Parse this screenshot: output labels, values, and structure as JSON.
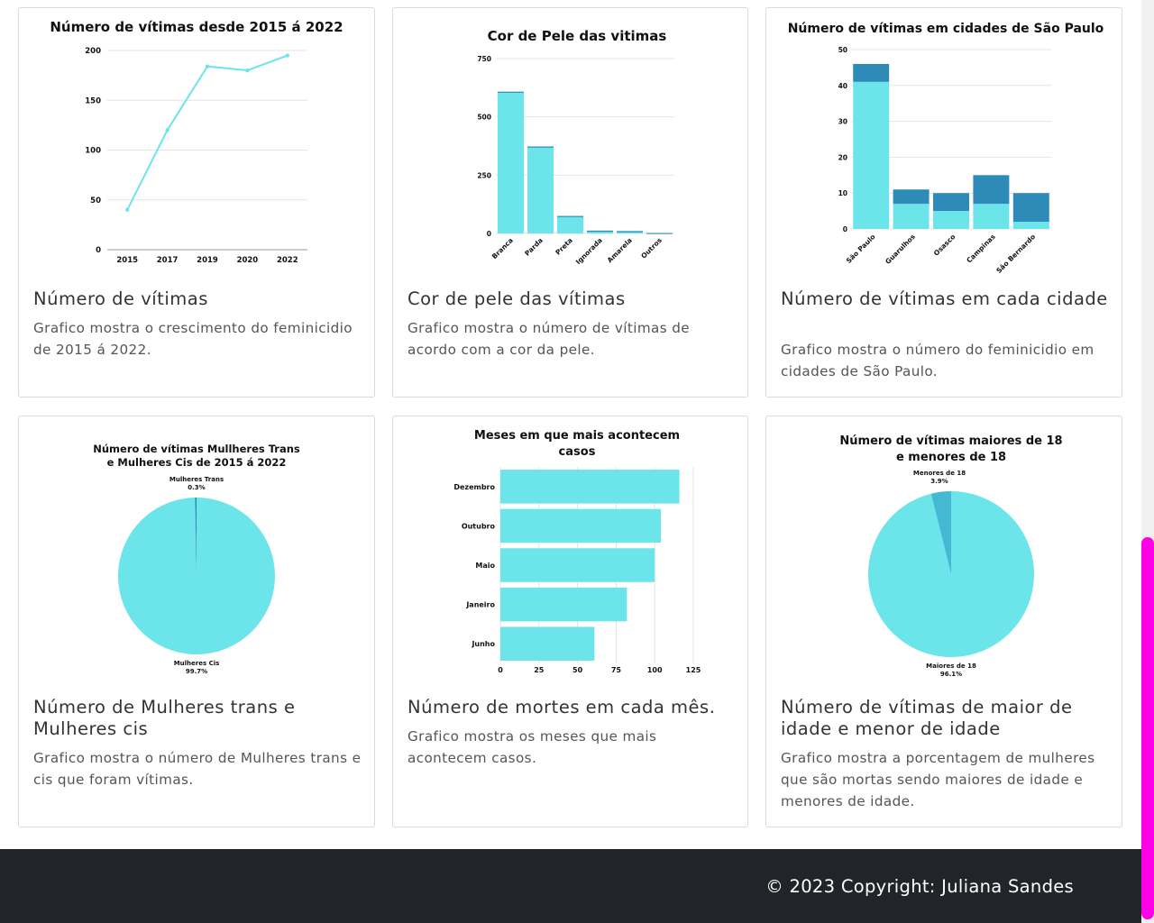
{
  "cards": [
    {
      "title": "Número de vítimas",
      "text": "Grafico mostra o crescimento do feminicidio de 2015 á 2022."
    },
    {
      "title": "Cor de pele das vítimas",
      "text": "Grafico mostra o número de vítimas de acordo com a cor da pele."
    },
    {
      "title": "Número de vítimas em cada cidade",
      "text": "Grafico mostra o número do feminicidio em cidades de São Paulo."
    },
    {
      "title": "Número de Mulheres trans e Mulheres cis",
      "text": "Grafico mostra o número de Mulheres trans e cis que foram vítimas."
    },
    {
      "title": "Número de mortes em cada mês.",
      "text": "Grafico mostra os meses que mais acontecem casos."
    },
    {
      "title": "Número de vítimas de maior de idade e menor de idade",
      "text": "Grafico mostra a porcentagem de mulheres que são mortas sendo maiores de idade e menores de idade."
    }
  ],
  "footer": {
    "copyright": "© 2023 Copyright: Juliana Sandes"
  },
  "colors": {
    "primary": "#6ce5ea",
    "dark": "#2e8bb8",
    "slice": "#45b8d4",
    "footer": "#212529",
    "scrollbar": "#ff00e6"
  },
  "chart_data": [
    {
      "type": "line",
      "title": "Número de vítimas desde 2015 á 2022",
      "categories": [
        "2015",
        "2017",
        "2019",
        "2020",
        "2022"
      ],
      "values": [
        40,
        120,
        184,
        180,
        195
      ],
      "yticks": [
        "0",
        "50",
        "100",
        "150",
        "200"
      ],
      "ylim": [
        0,
        200
      ],
      "grid": true,
      "color": "#6ce5ea"
    },
    {
      "type": "bar",
      "title": "Cor de Pele das vitimas",
      "categories": [
        "Branca",
        "Parda",
        "Preta",
        "Ignorada",
        "Amarela",
        "Outros"
      ],
      "values": [
        608,
        373,
        75,
        12,
        10,
        2
      ],
      "yticks": [
        "0",
        "250",
        "500",
        "750"
      ],
      "ylim": [
        0,
        750
      ],
      "grid": true,
      "color": "#6ce5ea"
    },
    {
      "type": "bar",
      "title": "Número de vítimas em cidades de São Paulo",
      "categories": [
        "São Paulo",
        "Guarulhos",
        "Osasco",
        "Campinas",
        "São Bernardo"
      ],
      "series": [
        {
          "values": [
            41,
            7,
            5,
            7,
            2
          ],
          "color": "#6ce5ea"
        },
        {
          "values": [
            5,
            4,
            5,
            8,
            8
          ],
          "color": "#2e8bb8"
        }
      ],
      "stacked": true,
      "yticks": [
        "0",
        "10",
        "20",
        "30",
        "40",
        "50"
      ],
      "ylim": [
        0,
        50
      ],
      "grid": true
    },
    {
      "type": "pie",
      "title": "Número de vítimas Mullheres Trans e Mulheres Cis de 2015 á 2022",
      "slices": [
        {
          "label": "Mulheres Trans",
          "pct": "0.3%",
          "value": 0.3,
          "color": "#2e8bb8"
        },
        {
          "label": "Mulheres Cis",
          "pct": "99.7%",
          "value": 99.7,
          "color": "#6ce5ea"
        }
      ]
    },
    {
      "type": "bar",
      "orientation": "horizontal",
      "title": "Meses em que mais acontecem casos",
      "categories": [
        "Dezembro",
        "Outubro",
        "Maio",
        "Janeiro",
        "Junho"
      ],
      "values": [
        116,
        104,
        100,
        82,
        61
      ],
      "xticks": [
        "0",
        "25",
        "50",
        "75",
        "100",
        "125"
      ],
      "xlim": [
        0,
        125
      ],
      "grid": true,
      "color": "#6ce5ea"
    },
    {
      "type": "pie",
      "title": "Número de vítimas maiores de 18 e menores de 18",
      "slices": [
        {
          "label": "Menores de 18",
          "pct": "3.9%",
          "value": 3.9,
          "color": "#45b8d4"
        },
        {
          "label": "Maiores de 18",
          "pct": "96.1%",
          "value": 96.1,
          "color": "#6ce5ea"
        }
      ]
    }
  ]
}
